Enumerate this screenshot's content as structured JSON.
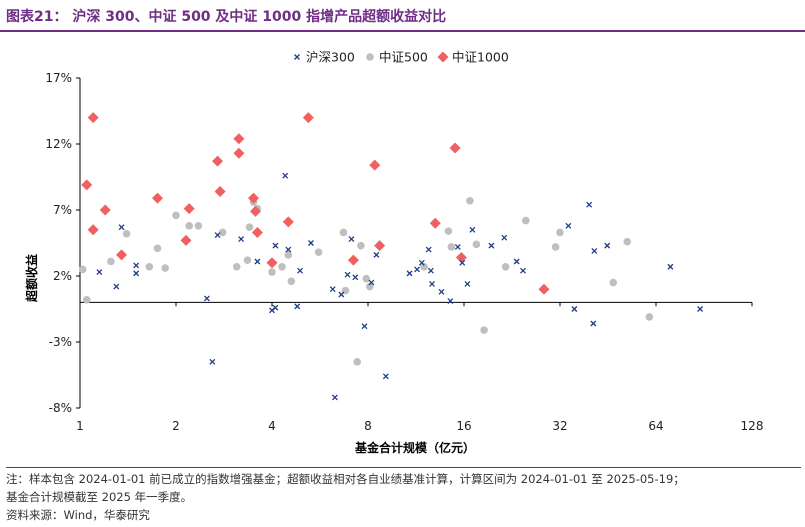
{
  "header": {
    "title": "图表21：  沪深 300、中证 500 及中证 1000 指增产品超额收益对比"
  },
  "notes": {
    "line1": "注：样本包含 2024-01-01 前已成立的指数增强基金；超额收益相对各自业绩基准计算，计算区间为 2024-01-01 至 2025-05-19；",
    "line2": "基金合计规模截至 2025 年一季度。",
    "source": "资料来源：Wind，华泰研究"
  },
  "colors": {
    "hs300": "#1f3c88",
    "zz500": "#bfbfbf",
    "zz1000": "#f06060",
    "frame": "#6f2d86"
  },
  "chart_data": {
    "type": "scatter",
    "xlabel": "基金合计规模（亿元）",
    "ylabel": "超额收益",
    "x_scale": "log2",
    "xlim": [
      1,
      128
    ],
    "ylim": [
      -8,
      17
    ],
    "x_ticks": [
      1,
      2,
      4,
      8,
      16,
      32,
      64,
      128
    ],
    "x_tick_labels": [
      "1",
      "2",
      "4",
      "8",
      "16",
      "32",
      "64",
      "128"
    ],
    "y_ticks": [
      17,
      12,
      7,
      2,
      -3,
      -8
    ],
    "y_tick_labels": [
      "17%",
      "12%",
      "7%",
      "2%",
      "-3%",
      "-8%"
    ],
    "legend_position": "top-center",
    "series": [
      {
        "name": "沪深300",
        "marker": "x",
        "points": [
          [
            1.15,
            2.3
          ],
          [
            1.3,
            1.2
          ],
          [
            1.35,
            5.7
          ],
          [
            1.5,
            2.8
          ],
          [
            1.5,
            2.2
          ],
          [
            2.5,
            0.3
          ],
          [
            2.6,
            -4.5
          ],
          [
            2.7,
            5.1
          ],
          [
            3.2,
            4.8
          ],
          [
            3.6,
            3.1
          ],
          [
            4.4,
            9.6
          ],
          [
            4.1,
            4.3
          ],
          [
            4.0,
            -0.6
          ],
          [
            4.1,
            -0.4
          ],
          [
            4.5,
            4.0
          ],
          [
            4.8,
            -0.3
          ],
          [
            4.9,
            2.4
          ],
          [
            5.3,
            4.5
          ],
          [
            6.2,
            1.0
          ],
          [
            6.3,
            -7.2
          ],
          [
            6.6,
            0.6
          ],
          [
            6.9,
            2.1
          ],
          [
            7.1,
            4.8
          ],
          [
            7.3,
            1.9
          ],
          [
            7.8,
            -1.8
          ],
          [
            8.2,
            1.5
          ],
          [
            8.5,
            3.6
          ],
          [
            9.1,
            -5.6
          ],
          [
            10.8,
            2.2
          ],
          [
            11.4,
            2.5
          ],
          [
            11.8,
            3.0
          ],
          [
            12.4,
            4.0
          ],
          [
            12.6,
            2.4
          ],
          [
            12.7,
            1.4
          ],
          [
            13.6,
            0.8
          ],
          [
            14.5,
            0.1
          ],
          [
            15.3,
            4.2
          ],
          [
            15.8,
            3.0
          ],
          [
            16.4,
            1.4
          ],
          [
            17.0,
            5.5
          ],
          [
            19.5,
            4.3
          ],
          [
            21.4,
            4.9
          ],
          [
            23.4,
            3.1
          ],
          [
            24.5,
            2.4
          ],
          [
            34.0,
            5.8
          ],
          [
            35.5,
            -0.5
          ],
          [
            39.5,
            7.4
          ],
          [
            40.7,
            -1.6
          ],
          [
            41.0,
            3.9
          ],
          [
            45.0,
            4.3
          ],
          [
            71.0,
            2.7
          ],
          [
            88.0,
            -0.5
          ]
        ]
      },
      {
        "name": "中证500",
        "marker": "circle",
        "points": [
          [
            1.02,
            2.5
          ],
          [
            1.05,
            0.2
          ],
          [
            1.25,
            3.1
          ],
          [
            1.4,
            5.2
          ],
          [
            1.65,
            2.7
          ],
          [
            1.75,
            4.1
          ],
          [
            1.85,
            2.6
          ],
          [
            2.0,
            6.6
          ],
          [
            2.2,
            5.8
          ],
          [
            2.35,
            5.8
          ],
          [
            2.8,
            5.3
          ],
          [
            3.1,
            2.7
          ],
          [
            3.35,
            3.2
          ],
          [
            3.4,
            5.7
          ],
          [
            3.5,
            7.6
          ],
          [
            3.6,
            7.1
          ],
          [
            4.0,
            2.3
          ],
          [
            4.3,
            2.7
          ],
          [
            4.5,
            3.6
          ],
          [
            4.6,
            1.6
          ],
          [
            5.6,
            3.8
          ],
          [
            6.7,
            5.3
          ],
          [
            6.8,
            0.9
          ],
          [
            7.4,
            -4.5
          ],
          [
            7.6,
            4.3
          ],
          [
            7.9,
            1.8
          ],
          [
            8.1,
            1.2
          ],
          [
            12.0,
            2.7
          ],
          [
            14.3,
            5.4
          ],
          [
            14.6,
            4.2
          ],
          [
            16.7,
            7.7
          ],
          [
            17.5,
            4.4
          ],
          [
            18.5,
            -2.1
          ],
          [
            21.6,
            2.7
          ],
          [
            25.0,
            6.2
          ],
          [
            31.0,
            4.2
          ],
          [
            32.0,
            5.3
          ],
          [
            47.0,
            1.5
          ],
          [
            52.0,
            4.6
          ],
          [
            61.0,
            -1.1
          ]
        ]
      },
      {
        "name": "中证1000",
        "marker": "diamond",
        "points": [
          [
            1.05,
            8.9
          ],
          [
            1.1,
            14.0
          ],
          [
            1.1,
            5.5
          ],
          [
            1.2,
            7.0
          ],
          [
            1.35,
            3.6
          ],
          [
            1.75,
            7.9
          ],
          [
            2.15,
            4.7
          ],
          [
            2.2,
            7.1
          ],
          [
            2.7,
            10.7
          ],
          [
            2.75,
            8.4
          ],
          [
            3.15,
            12.4
          ],
          [
            3.15,
            11.3
          ],
          [
            3.5,
            7.9
          ],
          [
            3.55,
            6.9
          ],
          [
            3.6,
            5.3
          ],
          [
            4.0,
            3.0
          ],
          [
            4.5,
            6.1
          ],
          [
            5.2,
            14.0
          ],
          [
            7.2,
            3.2
          ],
          [
            8.4,
            10.4
          ],
          [
            8.7,
            4.3
          ],
          [
            13.0,
            6.0
          ],
          [
            15.0,
            11.7
          ],
          [
            15.7,
            3.4
          ],
          [
            28.5,
            1.0
          ]
        ]
      }
    ]
  }
}
